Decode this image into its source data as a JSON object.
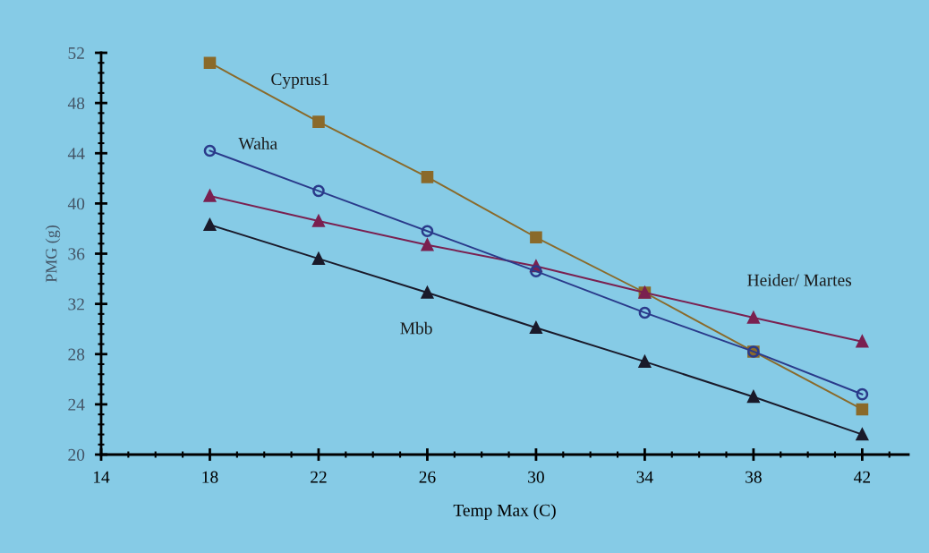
{
  "chart_data": {
    "type": "line",
    "xlabel": "Temp Max (C)",
    "ylabel": "PMG (g)",
    "x": [
      18,
      22,
      26,
      30,
      34,
      38,
      42
    ],
    "xlim": [
      14,
      43.7
    ],
    "xticks": [
      14,
      18,
      22,
      26,
      30,
      34,
      38,
      42
    ],
    "ylim": [
      20,
      52
    ],
    "yticks": [
      20,
      24,
      28,
      32,
      36,
      40,
      44,
      48,
      52
    ],
    "grid": false,
    "legend": false,
    "line_style": "solid",
    "series": [
      {
        "name": "Cyprus1",
        "color": "#8a6a2a",
        "marker": "square",
        "values": [
          51.2,
          46.5,
          42.1,
          37.3,
          32.9,
          28.2,
          23.6
        ]
      },
      {
        "name": "Waha",
        "color": "#2a3a8a",
        "marker": "circle",
        "values": [
          44.2,
          41.0,
          37.8,
          34.6,
          31.3,
          28.2,
          24.8
        ]
      },
      {
        "name": "Heider/ Martes",
        "color": "#7a2050",
        "marker": "triangle",
        "values": [
          40.6,
          38.6,
          36.7,
          35.0,
          32.9,
          30.9,
          29.0
        ]
      },
      {
        "name": "Mbb",
        "color": "#1a1a2a",
        "marker": "triangle",
        "values": [
          38.3,
          35.6,
          32.9,
          30.1,
          27.4,
          24.6,
          21.6
        ]
      }
    ]
  }
}
